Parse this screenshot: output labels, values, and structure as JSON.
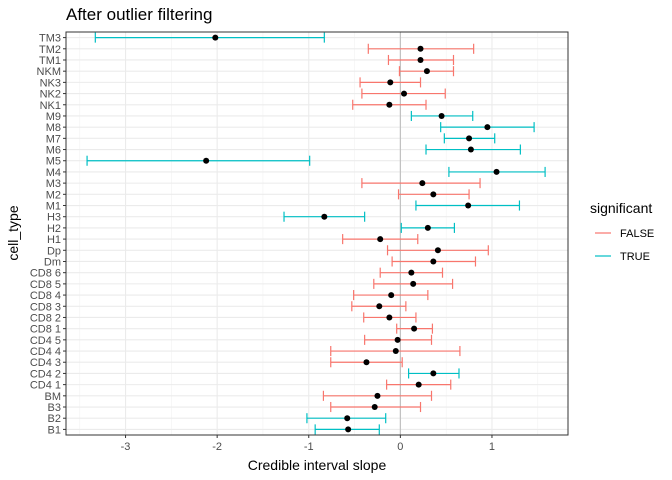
{
  "chart_data": {
    "type": "errorbar",
    "title": "After outlier filtering",
    "xlabel": "Credible interval slope",
    "ylabel": "cell_type",
    "xlim": [
      -3.65,
      1.83
    ],
    "x_ticks": [
      -3,
      -2,
      -1,
      0,
      1
    ],
    "reference_line_x": 0,
    "grid": true,
    "legend": {
      "title": "significant",
      "position": "right",
      "entries": [
        {
          "label": "FALSE",
          "color": "#F8766D"
        },
        {
          "label": "TRUE",
          "color": "#00BFC4"
        }
      ]
    },
    "point_color": "#000000",
    "categories": [
      "B1",
      "B2",
      "B3",
      "BM",
      "CD4 1",
      "CD4 2",
      "CD4 3",
      "CD4 4",
      "CD4 5",
      "CD8 1",
      "CD8 2",
      "CD8 3",
      "CD8 4",
      "CD8 5",
      "CD8 6",
      "Dm",
      "Dp",
      "H1",
      "H2",
      "H3",
      "M1",
      "M2",
      "M3",
      "M4",
      "M5",
      "M6",
      "M7",
      "M8",
      "M9",
      "NK1",
      "NK2",
      "NK3",
      "NKM",
      "TM1",
      "TM2",
      "TM3"
    ],
    "series": [
      {
        "category": "B1",
        "estimate": -0.57,
        "lower": -0.93,
        "upper": -0.23,
        "significant": true
      },
      {
        "category": "B2",
        "estimate": -0.58,
        "lower": -1.02,
        "upper": -0.16,
        "significant": true
      },
      {
        "category": "B3",
        "estimate": -0.28,
        "lower": -0.76,
        "upper": 0.22,
        "significant": false
      },
      {
        "category": "BM",
        "estimate": -0.25,
        "lower": -0.84,
        "upper": 0.34,
        "significant": false
      },
      {
        "category": "CD4 1",
        "estimate": 0.2,
        "lower": -0.15,
        "upper": 0.55,
        "significant": false
      },
      {
        "category": "CD4 2",
        "estimate": 0.36,
        "lower": 0.09,
        "upper": 0.64,
        "significant": true
      },
      {
        "category": "CD4 3",
        "estimate": -0.37,
        "lower": -0.76,
        "upper": 0.02,
        "significant": false
      },
      {
        "category": "CD4 4",
        "estimate": -0.05,
        "lower": -0.76,
        "upper": 0.65,
        "significant": false
      },
      {
        "category": "CD4 5",
        "estimate": -0.03,
        "lower": -0.39,
        "upper": 0.34,
        "significant": false
      },
      {
        "category": "CD8 1",
        "estimate": 0.15,
        "lower": -0.04,
        "upper": 0.35,
        "significant": false
      },
      {
        "category": "CD8 2",
        "estimate": -0.12,
        "lower": -0.4,
        "upper": 0.17,
        "significant": false
      },
      {
        "category": "CD8 3",
        "estimate": -0.23,
        "lower": -0.53,
        "upper": 0.06,
        "significant": false
      },
      {
        "category": "CD8 4",
        "estimate": -0.1,
        "lower": -0.51,
        "upper": 0.3,
        "significant": false
      },
      {
        "category": "CD8 5",
        "estimate": 0.14,
        "lower": -0.29,
        "upper": 0.57,
        "significant": false
      },
      {
        "category": "CD8 6",
        "estimate": 0.12,
        "lower": -0.22,
        "upper": 0.46,
        "significant": false
      },
      {
        "category": "Dm",
        "estimate": 0.36,
        "lower": -0.09,
        "upper": 0.82,
        "significant": false
      },
      {
        "category": "Dp",
        "estimate": 0.41,
        "lower": -0.14,
        "upper": 0.96,
        "significant": false
      },
      {
        "category": "H1",
        "estimate": -0.22,
        "lower": -0.63,
        "upper": 0.19,
        "significant": false
      },
      {
        "category": "H2",
        "estimate": 0.3,
        "lower": 0.01,
        "upper": 0.59,
        "significant": true
      },
      {
        "category": "H3",
        "estimate": -0.83,
        "lower": -1.27,
        "upper": -0.39,
        "significant": true
      },
      {
        "category": "M1",
        "estimate": 0.74,
        "lower": 0.17,
        "upper": 1.3,
        "significant": true
      },
      {
        "category": "M2",
        "estimate": 0.36,
        "lower": -0.02,
        "upper": 0.75,
        "significant": false
      },
      {
        "category": "M3",
        "estimate": 0.24,
        "lower": -0.42,
        "upper": 0.87,
        "significant": false
      },
      {
        "category": "M4",
        "estimate": 1.05,
        "lower": 0.53,
        "upper": 1.58,
        "significant": true
      },
      {
        "category": "M5",
        "estimate": -2.12,
        "lower": -3.42,
        "upper": -0.99,
        "significant": true
      },
      {
        "category": "M6",
        "estimate": 0.77,
        "lower": 0.28,
        "upper": 1.31,
        "significant": true
      },
      {
        "category": "M7",
        "estimate": 0.75,
        "lower": 0.48,
        "upper": 1.03,
        "significant": true
      },
      {
        "category": "M8",
        "estimate": 0.95,
        "lower": 0.44,
        "upper": 1.46,
        "significant": true
      },
      {
        "category": "M9",
        "estimate": 0.45,
        "lower": 0.12,
        "upper": 0.79,
        "significant": true
      },
      {
        "category": "NK1",
        "estimate": -0.12,
        "lower": -0.52,
        "upper": 0.28,
        "significant": false
      },
      {
        "category": "NK2",
        "estimate": 0.04,
        "lower": -0.42,
        "upper": 0.49,
        "significant": false
      },
      {
        "category": "NK3",
        "estimate": -0.11,
        "lower": -0.44,
        "upper": 0.22,
        "significant": false
      },
      {
        "category": "NKM",
        "estimate": 0.29,
        "lower": -0.01,
        "upper": 0.58,
        "significant": false
      },
      {
        "category": "TM1",
        "estimate": 0.22,
        "lower": -0.13,
        "upper": 0.58,
        "significant": false
      },
      {
        "category": "TM2",
        "estimate": 0.22,
        "lower": -0.35,
        "upper": 0.8,
        "significant": false
      },
      {
        "category": "TM3",
        "estimate": -2.02,
        "lower": -3.33,
        "upper": -0.83,
        "significant": true
      }
    ]
  }
}
